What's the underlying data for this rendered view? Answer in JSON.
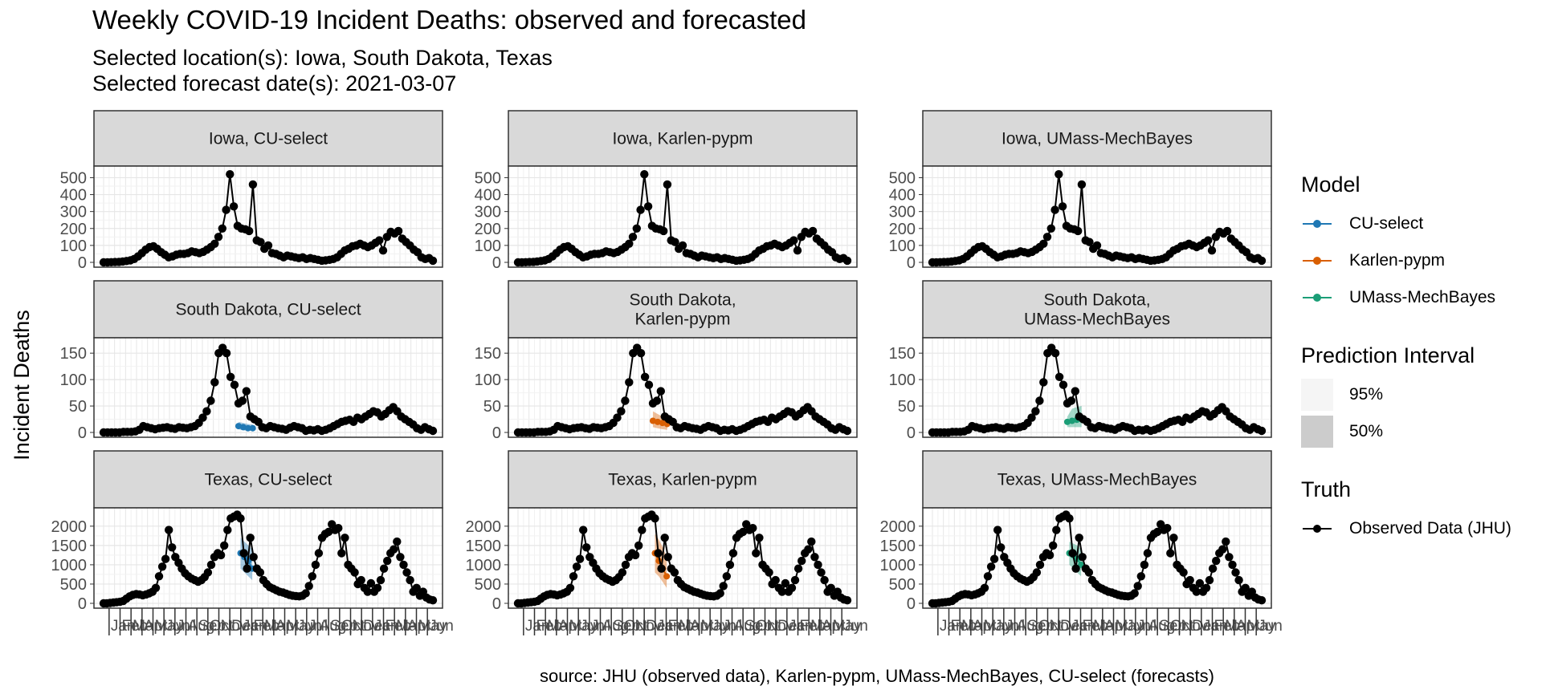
{
  "title": "Weekly COVID-19 Incident Deaths: observed and forecasted",
  "subtitle_line1": "Selected location(s): Iowa, South Dakota, Texas",
  "subtitle_line2": "Selected forecast date(s): 2021-03-07",
  "y_axis_label": "Incident Deaths",
  "caption": "source: JHU (observed data), Karlen-pypm, UMass-MechBayes, CU-select (forecasts)",
  "legend": {
    "model_title": "Model",
    "models": [
      {
        "label": "CU-select",
        "color": "#1f78b4"
      },
      {
        "label": "Karlen-pypm",
        "color": "#d95f02"
      },
      {
        "label": "UMass-MechBayes",
        "color": "#1b9e77"
      }
    ],
    "pi_title": "Prediction Interval",
    "intervals": [
      {
        "label": "95%",
        "fill": "#f5f5f5"
      },
      {
        "label": "50%",
        "fill": "#cccccc"
      }
    ],
    "truth_title": "Truth",
    "truth_label": "Observed Data (JHU)"
  },
  "chart_data": {
    "type": "line",
    "facet_rows": [
      "Iowa",
      "South Dakota",
      "Texas"
    ],
    "facet_cols": [
      "CU-select",
      "Karlen-pypm",
      "UMass-MechBayes"
    ],
    "strip_labels": [
      [
        "Iowa, CU-select",
        "Iowa, Karlen-pypm",
        "Iowa, UMass-MechBayes"
      ],
      [
        "South Dakota, CU-select",
        "South Dakota,\nKarlen-pypm",
        "South Dakota,\nUMass-MechBayes"
      ],
      [
        "Texas, CU-select",
        "Texas, Karlen-pypm",
        "Texas, UMass-MechBayes"
      ]
    ],
    "x_tick_labels": [
      "Jan",
      "Feb",
      "Mar",
      "Apr",
      "May",
      "Jun",
      "Jul",
      "Aug",
      "Sep",
      "Oct",
      "Nov",
      "Dec",
      "Jan",
      "Feb",
      "Mar",
      "Apr",
      "May",
      "Jun",
      "Jul",
      "Aug",
      "Sep",
      "Oct",
      "Nov",
      "Dec",
      "Jan",
      "Feb",
      "Mar",
      "Apr",
      "May",
      "Jun"
    ],
    "rows": [
      {
        "location": "Iowa",
        "y_ticks": [
          0,
          100,
          200,
          300,
          400,
          500
        ],
        "ylim": [
          0,
          540
        ],
        "observed": [
          0,
          0,
          1,
          2,
          3,
          5,
          8,
          12,
          20,
          35,
          55,
          75,
          90,
          95,
          80,
          60,
          45,
          30,
          35,
          45,
          50,
          50,
          55,
          65,
          60,
          55,
          62,
          75,
          90,
          110,
          150,
          200,
          310,
          520,
          330,
          215,
          200,
          195,
          185,
          460,
          130,
          120,
          80,
          100,
          55,
          50,
          40,
          30,
          40,
          35,
          30,
          25,
          30,
          20,
          25,
          20,
          15,
          10,
          12,
          15,
          20,
          30,
          50,
          70,
          80,
          95,
          100,
          110,
          100,
          90,
          100,
          115,
          130,
          70,
          150,
          180,
          170,
          185,
          140,
          120,
          100,
          75,
          60,
          30,
          20,
          25,
          10
        ]
      },
      {
        "location": "South Dakota",
        "y_ticks": [
          0,
          50,
          100,
          150
        ],
        "ylim": [
          0,
          170
        ],
        "observed": [
          0,
          0,
          0,
          0,
          0,
          1,
          1,
          1,
          2,
          5,
          12,
          10,
          8,
          6,
          8,
          9,
          10,
          8,
          7,
          10,
          9,
          8,
          10,
          12,
          18,
          28,
          40,
          60,
          95,
          150,
          160,
          150,
          105,
          90,
          55,
          60,
          78,
          30,
          25,
          20,
          10,
          8,
          12,
          10,
          8,
          7,
          5,
          9,
          12,
          10,
          8,
          3,
          5,
          4,
          6,
          3,
          5,
          8,
          12,
          16,
          20,
          22,
          24,
          20,
          28,
          25,
          30,
          35,
          40,
          38,
          30,
          35,
          42,
          48,
          40,
          30,
          25,
          20,
          15,
          8,
          5,
          10,
          6,
          3
        ]
      },
      {
        "location": "Texas",
        "y_ticks": [
          0,
          500,
          1000,
          1500,
          2000
        ],
        "ylim": [
          0,
          2350
        ],
        "observed": [
          0,
          0,
          10,
          20,
          30,
          40,
          60,
          120,
          180,
          220,
          240,
          230,
          210,
          230,
          260,
          300,
          400,
          700,
          950,
          1150,
          1900,
          1450,
          1200,
          1050,
          900,
          780,
          700,
          640,
          600,
          560,
          600,
          680,
          800,
          1000,
          1200,
          1300,
          1250,
          1500,
          1900,
          2200,
          2250,
          2300,
          2200,
          1300,
          900,
          1700,
          1200,
          900,
          800,
          600,
          500,
          420,
          380,
          340,
          300,
          280,
          250,
          220,
          200,
          190,
          180,
          200,
          260,
          450,
          700,
          1000,
          1300,
          1700,
          1800,
          1850,
          2050,
          1900,
          1950,
          1300,
          1700,
          1000,
          900,
          800,
          500,
          600,
          400,
          300,
          520,
          300,
          400,
          600,
          900,
          1100,
          1300,
          1400,
          1600,
          1200,
          1000,
          800,
          600,
          300,
          400,
          200,
          300,
          150,
          100,
          80
        ]
      }
    ],
    "forecasts": [
      {
        "row": 1,
        "col": 0,
        "model": "CU-select",
        "median": [
          12,
          10,
          8,
          8
        ],
        "pi95_low": [
          6,
          4,
          3,
          3
        ],
        "pi95_high": [
          20,
          18,
          16,
          15
        ]
      },
      {
        "row": 1,
        "col": 1,
        "model": "Karlen-pypm",
        "median": [
          22,
          20,
          18,
          16
        ],
        "pi95_low": [
          10,
          8,
          6,
          5
        ],
        "pi95_high": [
          40,
          35,
          30,
          28
        ]
      },
      {
        "row": 1,
        "col": 2,
        "model": "UMass-MechBayes",
        "median": [
          20,
          22,
          24,
          25
        ],
        "pi95_low": [
          10,
          10,
          10,
          10
        ],
        "pi95_high": [
          30,
          45,
          48,
          50
        ]
      },
      {
        "row": 2,
        "col": 0,
        "model": "CU-select",
        "median": [
          1300,
          1200,
          1100,
          900
        ],
        "pi95_low": [
          900,
          800,
          700,
          600
        ],
        "pi95_high": [
          1700,
          1600,
          1500,
          1400
        ]
      },
      {
        "row": 2,
        "col": 1,
        "model": "Karlen-pypm",
        "median": [
          1300,
          1100,
          900,
          700
        ],
        "pi95_low": [
          800,
          700,
          550,
          400
        ],
        "pi95_high": [
          1800,
          1650,
          1450,
          1200
        ]
      },
      {
        "row": 2,
        "col": 2,
        "model": "UMass-MechBayes",
        "median": [
          1300,
          1250,
          1150,
          1000
        ],
        "pi95_low": [
          1000,
          900,
          800,
          700
        ],
        "pi95_high": [
          1600,
          1550,
          1500,
          1400
        ]
      }
    ],
    "grid": true,
    "legend_position": "right"
  }
}
